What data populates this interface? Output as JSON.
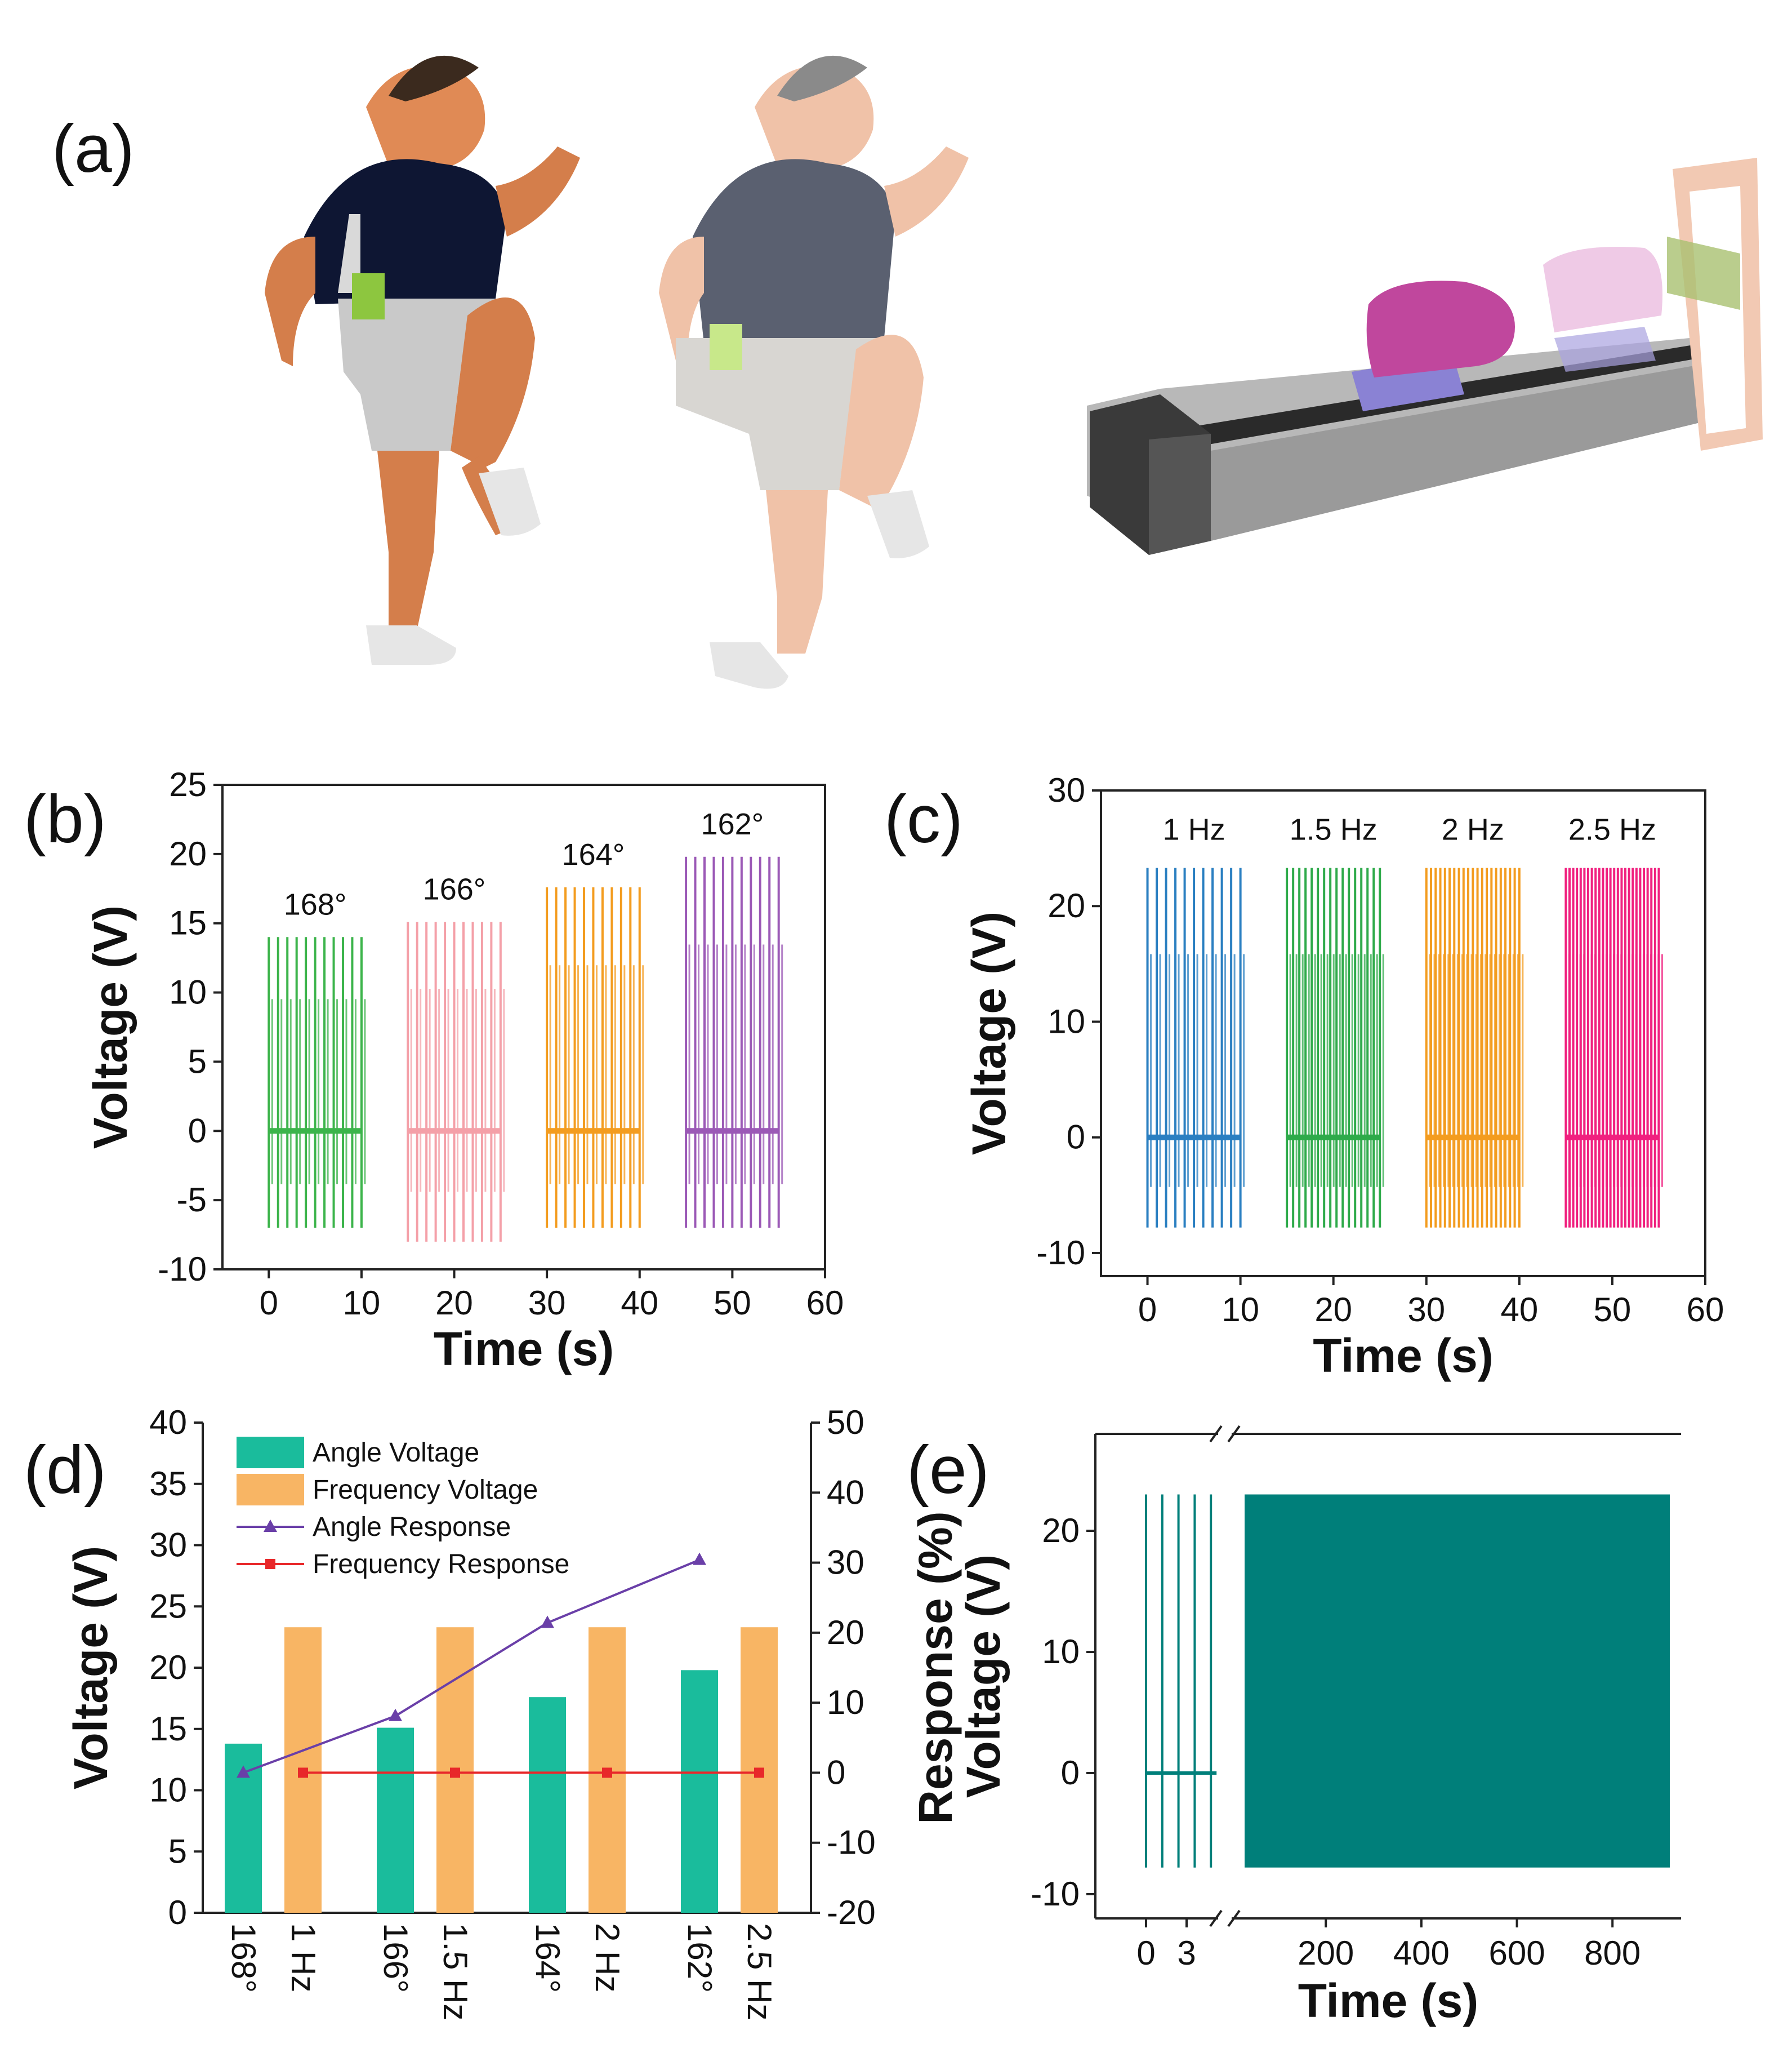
{
  "panels": {
    "a": {
      "label": "(a)"
    },
    "b": {
      "label": "(b)"
    },
    "c": {
      "label": "(c)"
    },
    "d": {
      "label": "(d)"
    },
    "e": {
      "label": "(e)"
    }
  },
  "colors": {
    "green": "#3cb44b",
    "pink": "#f4a0a8",
    "orange": "#f39c1f",
    "purple": "#9b59b6",
    "blue": "#2a7fc1",
    "green2": "#2eaa4a",
    "magenta": "#f0207f",
    "teal": "#1abc9c",
    "barorange": "#f8b564",
    "lineangle": "#6a3fa8",
    "linefreq": "#e8282a",
    "dark_teal": "#007f7a"
  },
  "chart_data": [
    {
      "id": "b",
      "type": "line",
      "xlabel": "Time (s)",
      "ylabel": "Voltage (V)",
      "xlim": [
        -5,
        60
      ],
      "ylim": [
        -10,
        25
      ],
      "xticks": [
        0,
        10,
        20,
        30,
        40,
        50,
        60
      ],
      "yticks": [
        -10,
        -5,
        0,
        5,
        10,
        15,
        20,
        25
      ],
      "series": [
        {
          "name": "168°",
          "t_start": 0,
          "t_end": 10,
          "peak": 14,
          "trough": -7,
          "pulses": 11,
          "color": "#3cb44b"
        },
        {
          "name": "166°",
          "t_start": 15,
          "t_end": 25,
          "peak": 15.1,
          "trough": -8,
          "pulses": 11,
          "color": "#f4a0a8"
        },
        {
          "name": "164°",
          "t_start": 30,
          "t_end": 40,
          "peak": 17.6,
          "trough": -7,
          "pulses": 11,
          "color": "#f39c1f"
        },
        {
          "name": "162°",
          "t_start": 45,
          "t_end": 55,
          "peak": 19.8,
          "trough": -7,
          "pulses": 11,
          "color": "#9b59b6"
        }
      ]
    },
    {
      "id": "c",
      "type": "line",
      "xlabel": "Time (s)",
      "ylabel": "Voltage (V)",
      "xlim": [
        -5,
        60
      ],
      "ylim": [
        -12,
        30
      ],
      "xticks": [
        0,
        10,
        20,
        30,
        40,
        50,
        60
      ],
      "yticks": [
        -10,
        0,
        10,
        20,
        30
      ],
      "series": [
        {
          "name": "1 Hz",
          "t_start": 0,
          "t_end": 10,
          "peak": 23.3,
          "trough": -7.8,
          "pulses": 11,
          "color": "#2a7fc1"
        },
        {
          "name": "1.5 Hz",
          "t_start": 15,
          "t_end": 25,
          "peak": 23.3,
          "trough": -7.8,
          "pulses": 16,
          "color": "#2eaa4a"
        },
        {
          "name": "2 Hz",
          "t_start": 30,
          "t_end": 40,
          "peak": 23.3,
          "trough": -7.8,
          "pulses": 21,
          "color": "#f39c1f"
        },
        {
          "name": "2.5 Hz",
          "t_start": 45,
          "t_end": 55,
          "peak": 23.3,
          "trough": -7.8,
          "pulses": 26,
          "color": "#f0207f"
        }
      ]
    },
    {
      "id": "d",
      "type": "bar",
      "ylabel": "Voltage (V)",
      "y2label": "Response (%)",
      "ylim": [
        0,
        40
      ],
      "y2lim": [
        -20,
        50
      ],
      "yticks": [
        0,
        5,
        10,
        15,
        20,
        25,
        30,
        35,
        40
      ],
      "y2ticks": [
        -20,
        -10,
        0,
        10,
        20,
        30,
        40,
        50
      ],
      "groups": [
        {
          "angle": "168°",
          "freq": "1 Hz"
        },
        {
          "angle": "166°",
          "freq": "1.5 Hz"
        },
        {
          "angle": "164°",
          "freq": "2 Hz"
        },
        {
          "angle": "162°",
          "freq": "2.5 Hz"
        }
      ],
      "series": [
        {
          "name": "Angle Voltage",
          "kind": "bar",
          "values": [
            13.8,
            15.1,
            17.6,
            19.8
          ]
        },
        {
          "name": "Frequency Voltage",
          "kind": "bar",
          "values": [
            23.3,
            23.3,
            23.3,
            23.3
          ]
        },
        {
          "name": "Angle Response",
          "kind": "line",
          "values": [
            0,
            8.1,
            21.4,
            30.4
          ]
        },
        {
          "name": "Frequency Response",
          "kind": "line",
          "values": [
            0,
            0,
            0,
            0
          ]
        }
      ]
    },
    {
      "id": "e",
      "type": "line",
      "xlabel": "Time (s)",
      "ylabel": "Voltage (V)",
      "ylim": [
        -12,
        28
      ],
      "yticks": [
        -10,
        0,
        10,
        20
      ],
      "xticks_left": [
        "0",
        "3"
      ],
      "xticks_right": [
        200,
        400,
        600,
        800
      ],
      "peak": 23,
      "trough": -7.8,
      "note": "broken x-axis; first segment 0-5 s with 5 pulses, second segment ~30-920 s continuous"
    }
  ]
}
